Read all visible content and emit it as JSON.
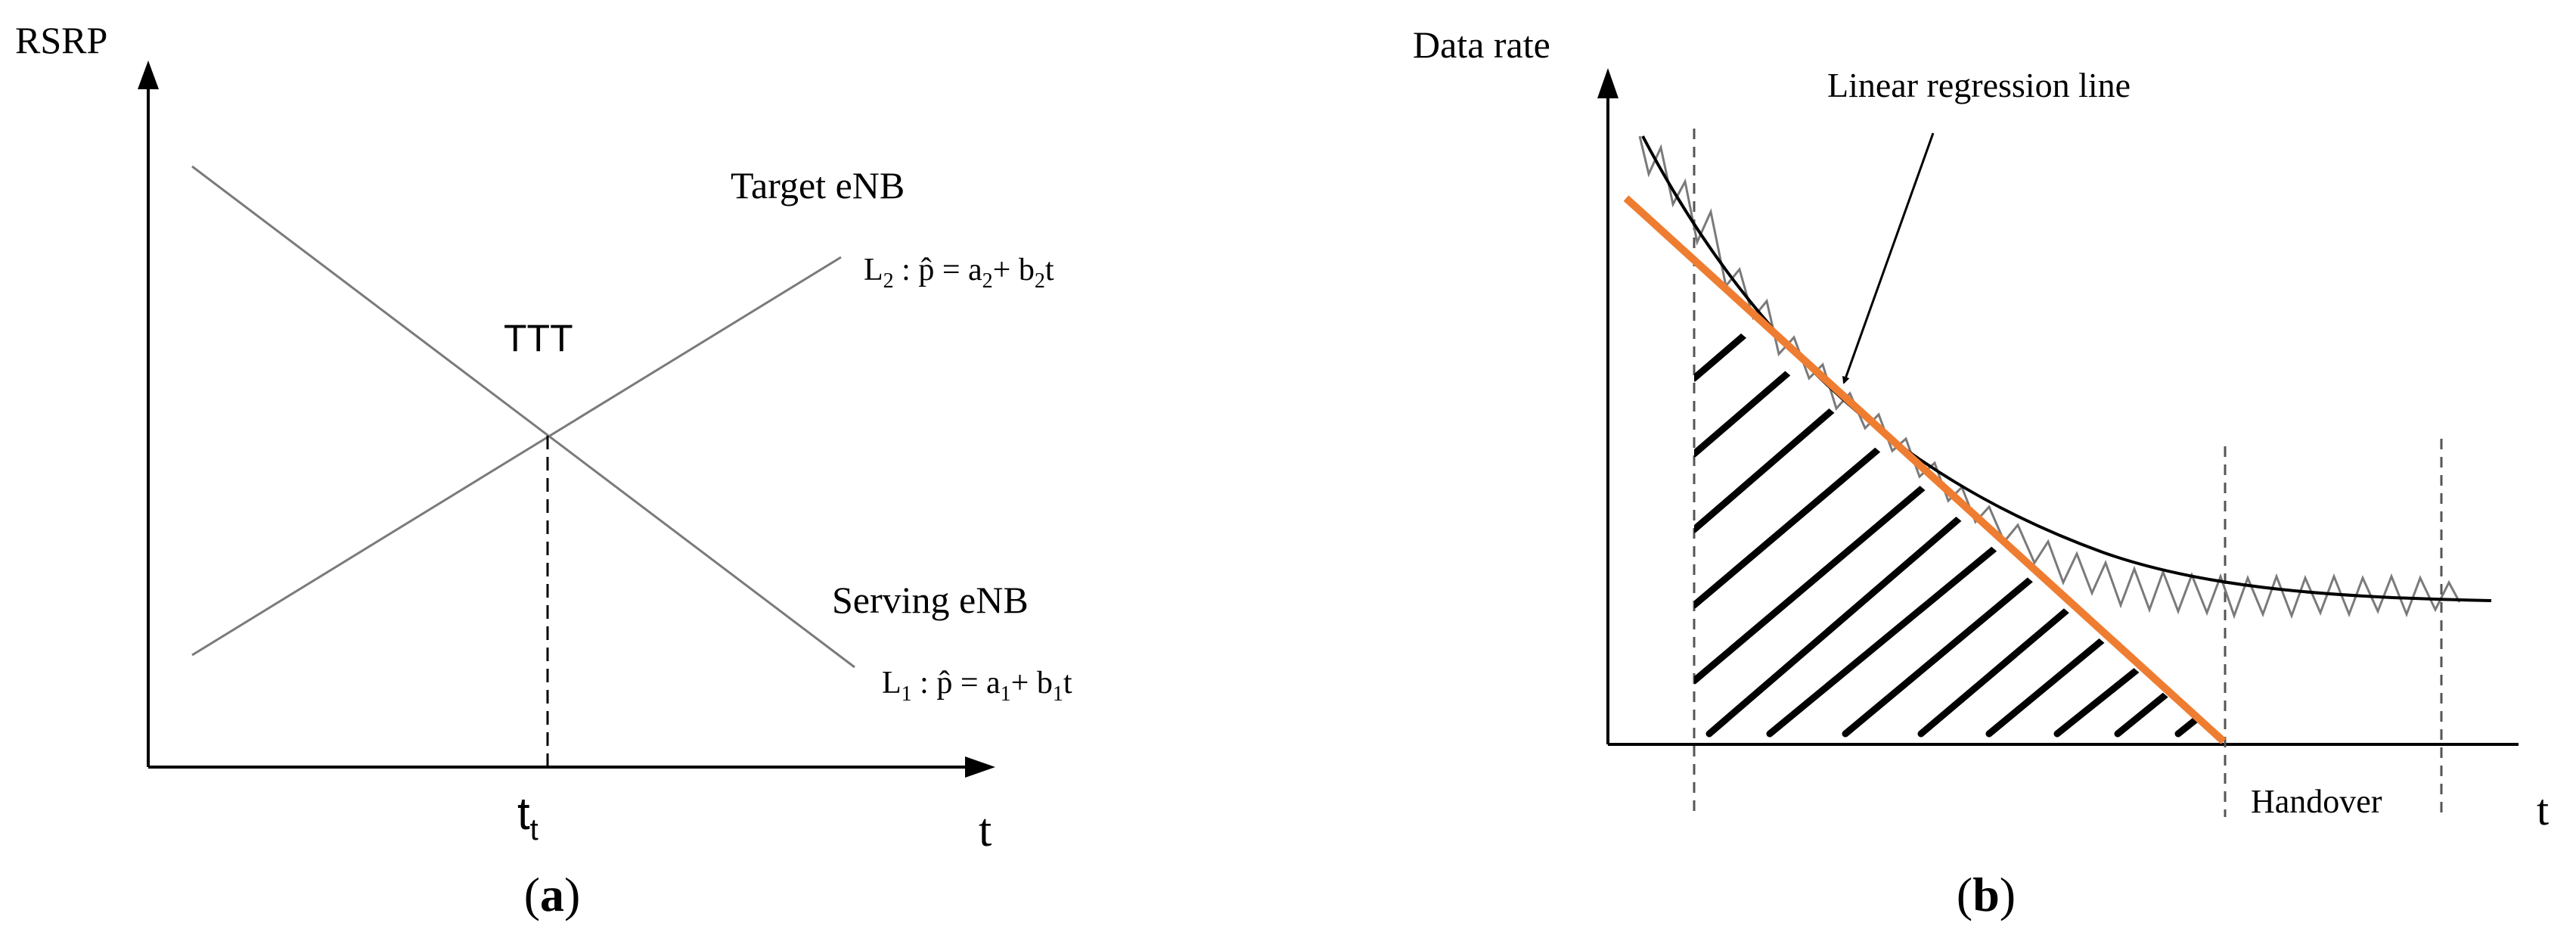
{
  "panel_a": {
    "y_axis_label": "RSRP",
    "x_axis_label": "t",
    "target_label": "Target eNB",
    "serving_label": "Serving eNB",
    "l2_prefix": "L",
    "l2_sub": "2",
    "l2_mid": " : p̂ =  a",
    "l2_a_sub": "2",
    "l2_plus": "+  b",
    "l2_b_sub": "2",
    "l2_tail": "t",
    "l1_prefix": "L",
    "l1_sub": "1",
    "l1_mid": " : p̂ =  a",
    "l1_a_sub": "1",
    "l1_plus": "+  b",
    "l1_b_sub": "1",
    "l1_tail": "t",
    "intersection_label": "TTT",
    "tick_main": "t",
    "tick_sub": "t",
    "caption_open": "(",
    "caption_letter": "a",
    "caption_close": ")"
  },
  "panel_b": {
    "y_axis_label": "Data rate",
    "x_axis_label": "t",
    "regression_label": "Linear regression line",
    "handover_label": "Handover",
    "caption_open": "(",
    "caption_letter": "b",
    "caption_close": ")"
  },
  "colors": {
    "line": "#000000",
    "gray_line": "#7a7a7a",
    "regression": "#ee7d31"
  }
}
